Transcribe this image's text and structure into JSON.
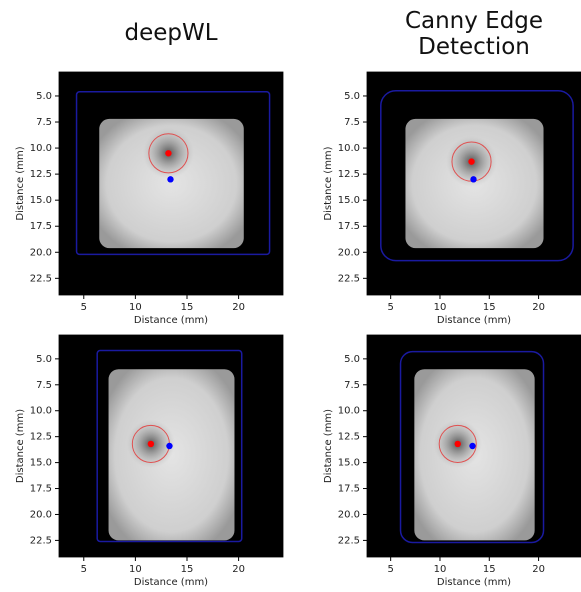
{
  "chart_data": [
    {
      "type": "scatter",
      "title": "deepWL",
      "xlabel": "Distance (mm)",
      "ylabel": "Distance (mm)",
      "xlim": [
        2.6,
        24.3
      ],
      "ylim": [
        24.1,
        2.7
      ],
      "xticks": [
        5,
        10,
        15,
        20
      ],
      "yticks": [
        {
          "value": 5,
          "label": "5.0"
        },
        {
          "value": 7.5,
          "label": "7.5"
        },
        {
          "value": 10,
          "label": "10.0"
        },
        {
          "value": 12.5,
          "label": "12.5"
        },
        {
          "value": 15,
          "label": "15.0"
        },
        {
          "value": 17.5,
          "label": "17.5"
        },
        {
          "value": 20,
          "label": "20.0"
        },
        {
          "value": 22.5,
          "label": "22.5"
        }
      ],
      "series": [
        {
          "color": "#ff0000",
          "x": [
            13.2
          ],
          "y": [
            10.5
          ]
        },
        {
          "color": "#0000ff",
          "x": [
            13.4
          ],
          "y": [
            13.0
          ]
        }
      ]
    },
    {
      "type": "scatter",
      "title": "Canny Edge Detection",
      "xlabel": "Distance (mm)",
      "ylabel": "Distance (mm)",
      "xlim": [
        2.6,
        24.3
      ],
      "ylim": [
        24.1,
        2.7
      ],
      "xticks": [
        5,
        10,
        15,
        20
      ],
      "yticks": [
        {
          "value": 5,
          "label": "5.0"
        },
        {
          "value": 7.5,
          "label": "7.5"
        },
        {
          "value": 10,
          "label": "10.0"
        },
        {
          "value": 12.5,
          "label": "12.5"
        },
        {
          "value": 15,
          "label": "15.0"
        },
        {
          "value": 17.5,
          "label": "17.5"
        },
        {
          "value": 20,
          "label": "20.0"
        },
        {
          "value": 22.5,
          "label": "22.5"
        }
      ],
      "series": [
        {
          "color": "#ff0000",
          "x": [
            13.2
          ],
          "y": [
            11.3
          ]
        },
        {
          "color": "#0000ff",
          "x": [
            13.4
          ],
          "y": [
            13.0
          ]
        }
      ]
    },
    {
      "type": "scatter",
      "xlabel": "Distance (mm)",
      "ylabel": "Distance (mm)",
      "xlim": [
        2.6,
        24.3
      ],
      "ylim": [
        24.1,
        2.7
      ],
      "xticks": [
        5,
        10,
        15,
        20
      ],
      "yticks": [
        {
          "value": 5,
          "label": "5.0"
        },
        {
          "value": 7.5,
          "label": "7.5"
        },
        {
          "value": 10,
          "label": "10.0"
        },
        {
          "value": 12.5,
          "label": "12.5"
        },
        {
          "value": 15,
          "label": "15.0"
        },
        {
          "value": 17.5,
          "label": "17.5"
        },
        {
          "value": 20,
          "label": "20.0"
        },
        {
          "value": 22.5,
          "label": "22.5"
        }
      ],
      "series": [
        {
          "color": "#ff0000",
          "x": [
            11.5
          ],
          "y": [
            13.2
          ]
        },
        {
          "color": "#0000ff",
          "x": [
            13.3
          ],
          "y": [
            13.4
          ]
        }
      ]
    },
    {
      "type": "scatter",
      "xlabel": "Distance (mm)",
      "ylabel": "Distance (mm)",
      "xlim": [
        2.6,
        24.3
      ],
      "ylim": [
        24.1,
        2.7
      ],
      "xticks": [
        5,
        10,
        15,
        20
      ],
      "yticks": [
        {
          "value": 5,
          "label": "5.0"
        },
        {
          "value": 7.5,
          "label": "7.5"
        },
        {
          "value": 10,
          "label": "10.0"
        },
        {
          "value": 12.5,
          "label": "12.5"
        },
        {
          "value": 15,
          "label": "15.0"
        },
        {
          "value": 17.5,
          "label": "17.5"
        },
        {
          "value": 20,
          "label": "20.0"
        },
        {
          "value": 22.5,
          "label": "22.5"
        }
      ],
      "series": [
        {
          "color": "#ff0000",
          "x": [
            11.8
          ],
          "y": [
            13.2
          ]
        },
        {
          "color": "#0000ff",
          "x": [
            13.3
          ],
          "y": [
            13.4
          ]
        }
      ]
    }
  ]
}
